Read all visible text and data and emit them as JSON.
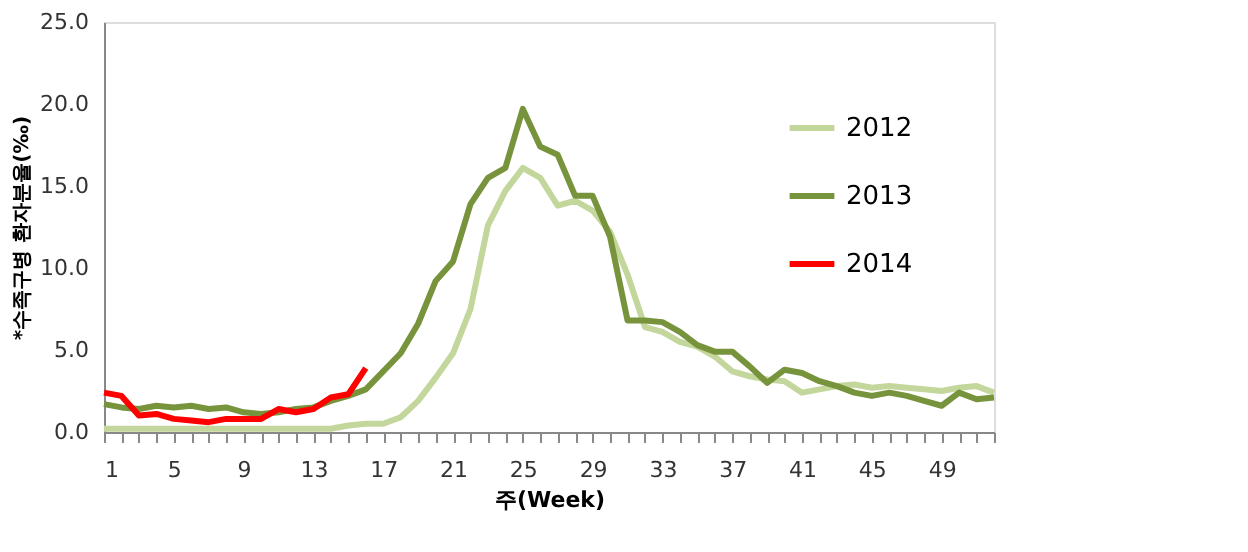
{
  "chart_data": {
    "type": "line",
    "xlabel": "주(Week)",
    "ylabel": "*수족구병 환자분율(‰)",
    "x": [
      1,
      2,
      3,
      4,
      5,
      6,
      7,
      8,
      9,
      10,
      11,
      12,
      13,
      14,
      15,
      16,
      17,
      18,
      19,
      20,
      21,
      22,
      23,
      24,
      25,
      26,
      27,
      28,
      29,
      30,
      31,
      32,
      33,
      34,
      35,
      36,
      37,
      38,
      39,
      40,
      41,
      42,
      43,
      44,
      45,
      46,
      47,
      48,
      49,
      50,
      51,
      52
    ],
    "xlim": [
      1,
      52
    ],
    "xticks": [
      1,
      {
        "value": 2,
        "label": null
      },
      {
        "value": 3,
        "label": null
      },
      {
        "value": 4,
        "label": null
      },
      5,
      {
        "value": 6,
        "label": null
      },
      {
        "value": 7,
        "label": null
      },
      {
        "value": 8,
        "label": null
      },
      9,
      {
        "value": 10,
        "label": null
      },
      {
        "value": 11,
        "label": null
      },
      {
        "value": 12,
        "label": null
      },
      13,
      {
        "value": 14,
        "label": null
      },
      {
        "value": 15,
        "label": null
      },
      {
        "value": 16,
        "label": null
      },
      17,
      {
        "value": 18,
        "label": null
      },
      {
        "value": 19,
        "label": null
      },
      {
        "value": 20,
        "label": null
      },
      21,
      {
        "value": 22,
        "label": null
      },
      {
        "value": 23,
        "label": null
      },
      {
        "value": 24,
        "label": null
      },
      25,
      {
        "value": 26,
        "label": null
      },
      {
        "value": 27,
        "label": null
      },
      {
        "value": 28,
        "label": null
      },
      29,
      {
        "value": 30,
        "label": null
      },
      {
        "value": 31,
        "label": null
      },
      {
        "value": 32,
        "label": null
      },
      33,
      {
        "value": 34,
        "label": null
      },
      {
        "value": 35,
        "label": null
      },
      {
        "value": 36,
        "label": null
      },
      37,
      {
        "value": 38,
        "label": null
      },
      {
        "value": 39,
        "label": null
      },
      {
        "value": 40,
        "label": null
      },
      41,
      {
        "value": 42,
        "label": null
      },
      {
        "value": 43,
        "label": null
      },
      {
        "value": 44,
        "label": null
      },
      45,
      {
        "value": 46,
        "label": null
      },
      {
        "value": 47,
        "label": null
      },
      {
        "value": 48,
        "label": null
      },
      49,
      {
        "value": 50,
        "label": null
      },
      {
        "value": 51,
        "label": null
      },
      {
        "value": 52,
        "label": null
      }
    ],
    "ylim": [
      0,
      25
    ],
    "yticks": [
      {
        "value": 0,
        "label": "0.0"
      },
      {
        "value": 5,
        "label": "5.0"
      },
      {
        "value": 10,
        "label": "10.0"
      },
      {
        "value": 15,
        "label": "15.0"
      },
      {
        "value": 20,
        "label": "20.0"
      },
      {
        "value": 25,
        "label": "25.0"
      }
    ],
    "grid": false,
    "legend": "top right",
    "marker": "none",
    "line_style": "solid",
    "series": [
      {
        "name": "2012",
        "color": "#c3d69b",
        "values": [
          0.2,
          0.2,
          0.2,
          0.2,
          0.2,
          0.2,
          0.2,
          0.2,
          0.2,
          0.2,
          0.2,
          0.2,
          0.2,
          0.2,
          0.4,
          0.5,
          0.5,
          0.9,
          1.9,
          3.3,
          4.8,
          7.5,
          12.6,
          14.7,
          16.1,
          15.5,
          13.8,
          14.1,
          13.5,
          12.2,
          9.6,
          6.4,
          6.1,
          5.5,
          5.2,
          4.6,
          3.7,
          3.4,
          3.2,
          3.1,
          2.4,
          2.6,
          2.8,
          2.9,
          2.7,
          2.8,
          2.7,
          2.6,
          2.5,
          2.7,
          2.8,
          2.4
        ]
      },
      {
        "name": "2013",
        "color": "#77933c",
        "values": [
          1.7,
          1.5,
          1.4,
          1.6,
          1.5,
          1.6,
          1.4,
          1.5,
          1.2,
          1.1,
          1.2,
          1.4,
          1.5,
          1.9,
          2.2,
          2.6,
          3.7,
          4.8,
          6.6,
          9.2,
          10.4,
          13.9,
          15.5,
          16.1,
          19.7,
          17.4,
          16.9,
          14.4,
          14.4,
          11.9,
          6.8,
          6.8,
          6.7,
          6.1,
          5.3,
          4.9,
          4.9,
          4.0,
          3.0,
          3.8,
          3.6,
          3.1,
          2.8,
          2.4,
          2.2,
          2.4,
          2.2,
          1.9,
          1.6,
          2.4,
          2.0,
          2.1
        ]
      },
      {
        "name": "2014",
        "color": "#ff0000",
        "values": [
          2.4,
          2.2,
          1.0,
          1.1,
          0.8,
          0.7,
          0.6,
          0.8,
          0.8,
          0.8,
          1.4,
          1.2,
          1.4,
          2.1,
          2.3,
          3.9,
          null,
          null,
          null,
          null,
          null,
          null,
          null,
          null,
          null,
          null,
          null,
          null,
          null,
          null,
          null,
          null,
          null,
          null,
          null,
          null,
          null,
          null,
          null,
          null,
          null,
          null,
          null,
          null,
          null,
          null,
          null,
          null,
          null,
          null,
          null,
          null
        ]
      }
    ]
  }
}
